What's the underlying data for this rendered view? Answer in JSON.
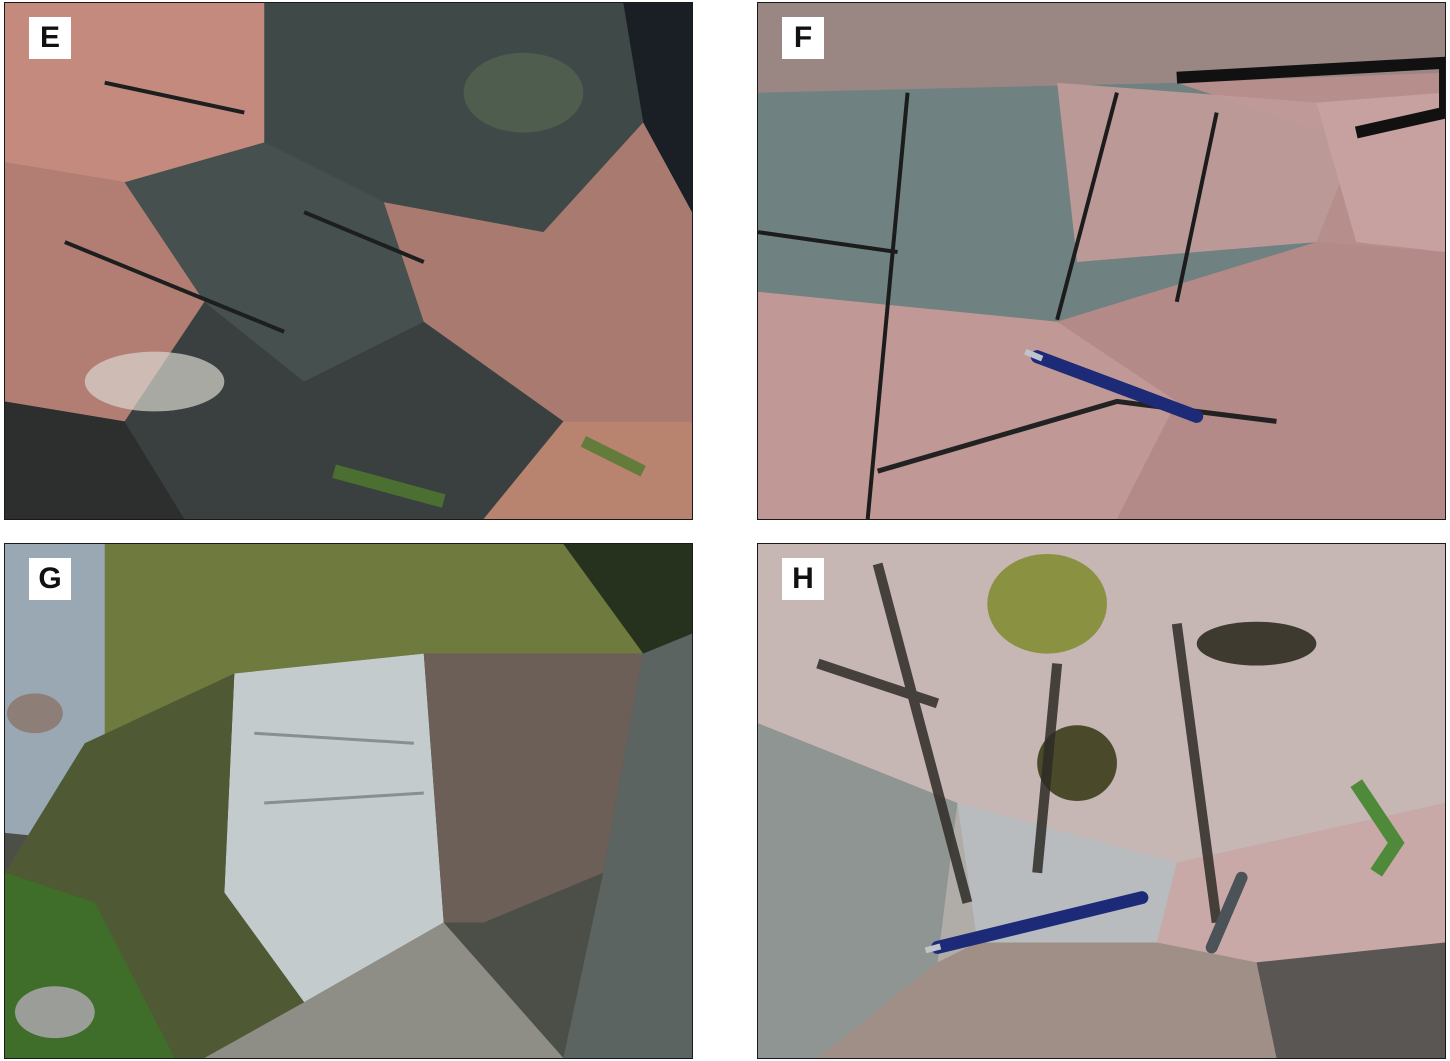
{
  "figure": {
    "panels": [
      {
        "id": "E",
        "label": "E"
      },
      {
        "id": "F",
        "label": "F"
      },
      {
        "id": "G",
        "label": "G"
      },
      {
        "id": "H",
        "label": "H"
      }
    ]
  },
  "colors": {
    "pink_granite": "#c98c82",
    "dark_rock": "#3d4548",
    "grey_rock": "#7f8c89",
    "moss": "#7b8b2e",
    "water": "#9aa8b4",
    "pen_blue": "#1c2a78"
  }
}
